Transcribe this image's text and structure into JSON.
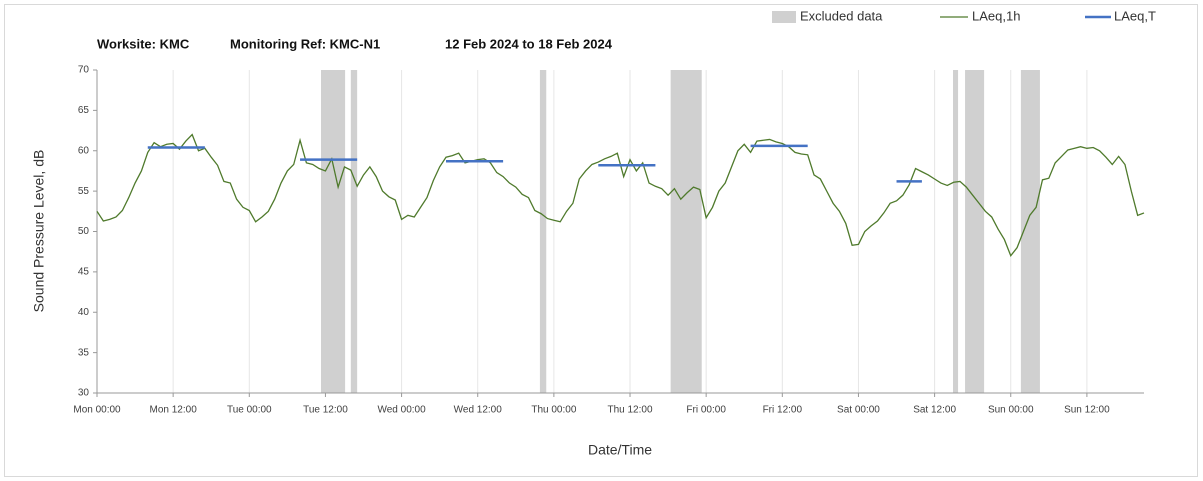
{
  "chart_data": {
    "type": "line",
    "title": [
      "Worksite: KMC",
      "Monitoring Ref: KMC-N1",
      "12 Feb 2024 to 18 Feb 2024"
    ],
    "xlabel": "Date/Time",
    "ylabel": "Sound Pressure Level, dB",
    "xlim": [
      0,
      165
    ],
    "ylim": [
      30,
      70
    ],
    "yticks": [
      30,
      35,
      40,
      45,
      50,
      55,
      60,
      65,
      70
    ],
    "xticks": [
      {
        "value": 0,
        "label": "Mon 00:00"
      },
      {
        "value": 12,
        "label": "Mon 12:00"
      },
      {
        "value": 24,
        "label": "Tue 00:00"
      },
      {
        "value": 36,
        "label": "Tue 12:00"
      },
      {
        "value": 48,
        "label": "Wed 00:00"
      },
      {
        "value": 60,
        "label": "Wed 12:00"
      },
      {
        "value": 72,
        "label": "Thu 00:00"
      },
      {
        "value": 84,
        "label": "Thu 12:00"
      },
      {
        "value": 96,
        "label": "Fri 00:00"
      },
      {
        "value": 108,
        "label": "Fri 12:00"
      },
      {
        "value": 120,
        "label": "Sat 00:00"
      },
      {
        "value": 132,
        "label": "Sat 12:00"
      },
      {
        "value": 144,
        "label": "Sun 00:00"
      },
      {
        "value": 156,
        "label": "Sun 12:00"
      }
    ],
    "grid": true,
    "excluded": {
      "name": "Excluded data",
      "color": "#d0d0d0",
      "ranges": [
        [
          35.3,
          39.1
        ],
        [
          40,
          41
        ],
        [
          69.8,
          70.8
        ],
        [
          90.4,
          95.3
        ],
        [
          134.9,
          135.7
        ],
        [
          136.8,
          139.8
        ],
        [
          145.6,
          148.6
        ]
      ]
    },
    "series": [
      {
        "name": "LAeq,1h",
        "color": "#4f7a2c",
        "x": [
          0,
          1,
          2,
          3,
          4,
          5,
          6,
          7,
          8,
          9,
          10,
          11,
          12,
          13,
          14,
          15,
          16,
          17,
          18,
          19,
          20,
          21,
          22,
          23,
          24,
          25,
          26,
          27,
          28,
          29,
          30,
          31,
          32,
          33,
          34,
          35,
          36,
          37,
          38,
          39,
          40,
          41,
          42,
          43,
          44,
          45,
          46,
          47,
          48,
          49,
          50,
          51,
          52,
          53,
          54,
          55,
          56,
          57,
          58,
          59,
          60,
          61,
          62,
          63,
          64,
          65,
          66,
          67,
          68,
          69,
          70,
          71,
          72,
          73,
          74,
          75,
          76,
          77,
          78,
          79,
          80,
          81,
          82,
          83,
          84,
          85,
          86,
          87,
          88,
          89,
          90,
          91,
          92,
          93,
          94,
          95,
          96,
          97,
          98,
          99,
          100,
          101,
          102,
          103,
          104,
          105,
          106,
          107,
          108,
          109,
          110,
          111,
          112,
          113,
          114,
          115,
          116,
          117,
          118,
          119,
          120,
          121,
          122,
          123,
          124,
          125,
          126,
          127,
          128,
          129,
          130,
          131,
          132,
          133,
          134,
          135,
          136,
          137,
          138,
          139,
          140,
          141,
          142,
          143,
          144,
          145,
          146,
          147,
          148,
          149,
          150,
          151,
          152,
          153,
          154,
          155,
          156,
          157,
          158,
          159,
          160,
          161,
          162,
          163,
          164,
          165
        ],
        "values": [
          52.5,
          51.3,
          51.5,
          51.8,
          52.6,
          54.2,
          56,
          57.5,
          59.8,
          61,
          60.5,
          60.8,
          60.9,
          60.2,
          61.2,
          62,
          60,
          60.3,
          59.2,
          58.2,
          56.2,
          56,
          54,
          53,
          52.6,
          51.2,
          51.8,
          52.5,
          54,
          56,
          57.5,
          58.3,
          61.3,
          58.5,
          58.3,
          57.8,
          57.5,
          59,
          55.5,
          58,
          57.6,
          55.6,
          57,
          58,
          56.8,
          55,
          54.3,
          53.9,
          51.5,
          52,
          51.8,
          53,
          54.2,
          56.3,
          58,
          59.2,
          59.4,
          59.7,
          58.5,
          58.7,
          58.9,
          59,
          58.5,
          57.3,
          56.8,
          56,
          55.5,
          54.6,
          54.2,
          52.6,
          52.2,
          51.6,
          51.4,
          51.2,
          52.5,
          53.5,
          56.5,
          57.5,
          58.3,
          58.6,
          59,
          59.3,
          59.7,
          56.8,
          58.9,
          57.5,
          58.5,
          56,
          55.6,
          55.3,
          54.5,
          55.3,
          54,
          54.8,
          55.5,
          55.2,
          51.7,
          53,
          55,
          56,
          58,
          60,
          60.8,
          59.8,
          61.2,
          61.3,
          61.4,
          61.1,
          60.9,
          60.5,
          59.8,
          59.6,
          59.5,
          57,
          56.5,
          55,
          53.5,
          52.5,
          51,
          48.3,
          48.4,
          50,
          50.7,
          51.3,
          52.3,
          53.5,
          53.8,
          54.5,
          55.8,
          57.8,
          57.4,
          57,
          56.5,
          56,
          55.7,
          56.1,
          56.2,
          55.5,
          54.5,
          53.5,
          52.5,
          51.8,
          50.3,
          49,
          47,
          48,
          50,
          52,
          53,
          56.4,
          56.6,
          58.5,
          59.3,
          60.1,
          60.3,
          60.5,
          60.3,
          60.4,
          60,
          59.2,
          58.3,
          59.3,
          58.3,
          55,
          52,
          52.3
        ]
      }
    ],
    "levels": {
      "name": "LAeq,T",
      "color": "#4472c4",
      "ranges": [
        [
          8,
          17
        ],
        [
          32,
          41
        ],
        [
          55,
          64
        ],
        [
          79,
          88
        ],
        [
          103,
          112
        ],
        [
          126,
          130
        ]
      ],
      "values": [
        60.4,
        58.9,
        58.7,
        58.2,
        60.6,
        56.2
      ]
    }
  }
}
